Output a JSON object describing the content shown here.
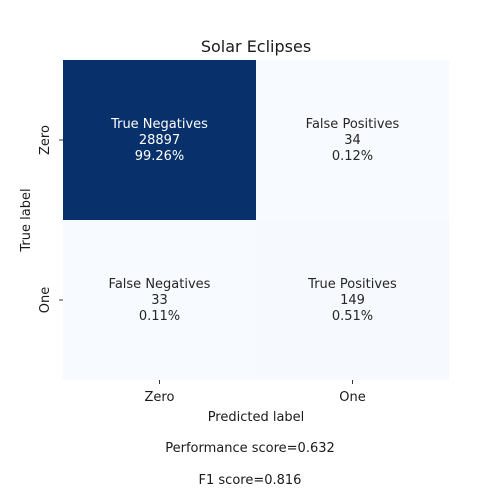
{
  "chart_data": {
    "type": "heatmap",
    "title": "Solar Eclipses",
    "xlabel": "Predicted label",
    "ylabel": "True label",
    "x_categories": [
      "Zero",
      "One"
    ],
    "y_categories": [
      "Zero",
      "One"
    ],
    "colormap": "Blues",
    "color_low": "#f7fbff",
    "color_high": "#08306b",
    "cells": [
      {
        "row": 0,
        "col": 0,
        "name": "True Negatives",
        "count": 28897,
        "count_label": "28897",
        "percent": "99.26%"
      },
      {
        "row": 0,
        "col": 1,
        "name": "False Positives",
        "count": 34,
        "count_label": "34",
        "percent": "0.12%"
      },
      {
        "row": 1,
        "col": 0,
        "name": "False Negatives",
        "count": 33,
        "count_label": "33",
        "percent": "0.11%"
      },
      {
        "row": 1,
        "col": 1,
        "name": "True Positives",
        "count": 149,
        "count_label": "149",
        "percent": "0.51%"
      }
    ]
  },
  "footer": {
    "performance": "Performance score=0.632",
    "f1": "F1 score=0.816"
  }
}
